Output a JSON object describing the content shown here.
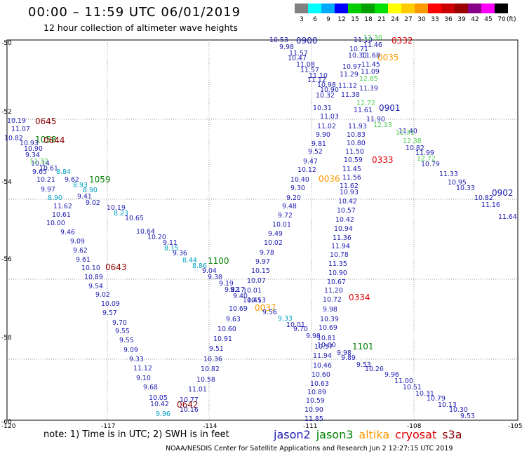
{
  "title": "00:00 – 11:59 UTC 06/01/2019",
  "subtitle": "12 hour collection of altimeter wave heights",
  "legend": {
    "ticks": [
      "3",
      "6",
      "9",
      "12",
      "15",
      "18",
      "21",
      "24",
      "27",
      "30",
      "33",
      "36",
      "39",
      "42",
      "45",
      "70"
    ],
    "unit": "(ft)",
    "colors": [
      "#808080",
      "#00ffff",
      "#00aaff",
      "#0000ff",
      "#00cc00",
      "#00a000",
      "#00e000",
      "#ffff00",
      "#ffcc00",
      "#ff9900",
      "#ff0000",
      "#cc0000",
      "#990000",
      "#880088",
      "#ff00ff",
      "#000000"
    ]
  },
  "axes": {
    "lat_labels": [
      "-50",
      "-52",
      "-54",
      "-56",
      "-58",
      "-60"
    ],
    "lon_labels": [
      "-120",
      "-117",
      "-114",
      "-111",
      "-108",
      "-105"
    ]
  },
  "colors": {
    "jason2": "#1a1ab0",
    "jason3": "#008000",
    "altika": "#ff9900",
    "cryosat": "#e00000",
    "s3a": "#8b0000",
    "cyan": "#00a0c0",
    "lightgreen": "#50d050"
  },
  "time_labels": [
    {
      "t": "0900",
      "c": "jason2"
    },
    {
      "t": "0332",
      "c": "cryosat"
    },
    {
      "t": "0035",
      "c": "altika"
    },
    {
      "t": "0901",
      "c": "jason2"
    },
    {
      "t": "0645",
      "c": "s3a"
    },
    {
      "t": "1058",
      "c": "jason3"
    },
    {
      "t": "0644",
      "c": "s3a"
    },
    {
      "t": "0333",
      "c": "cryosat"
    },
    {
      "t": "1059",
      "c": "jason3"
    },
    {
      "t": "0036",
      "c": "altika"
    },
    {
      "t": "0902",
      "c": "jason2"
    },
    {
      "t": "1100",
      "c": "jason3"
    },
    {
      "t": "0643",
      "c": "s3a"
    },
    {
      "t": "0334",
      "c": "cryosat"
    },
    {
      "t": "0037",
      "c": "altika"
    },
    {
      "t": "1101",
      "c": "jason3"
    },
    {
      "t": "0642",
      "c": "s3a"
    }
  ],
  "values": [
    {
      "v": "10.53",
      "c": "jason2"
    },
    {
      "v": "9.98",
      "c": "jason2"
    },
    {
      "v": "11.57",
      "c": "jason2"
    },
    {
      "v": "10.47",
      "c": "jason2"
    },
    {
      "v": "11.08",
      "c": "jason2"
    },
    {
      "v": "11.57",
      "c": "jason2"
    },
    {
      "v": "11.10",
      "c": "jason2"
    },
    {
      "v": "11.12",
      "c": "jason2"
    },
    {
      "v": "10.98",
      "c": "jason2"
    },
    {
      "v": "10.90",
      "c": "jason2"
    },
    {
      "v": "10.32",
      "c": "jason2"
    },
    {
      "v": "10.31",
      "c": "jason2"
    },
    {
      "v": "11.03",
      "c": "jason2"
    },
    {
      "v": "11.02",
      "c": "jason2"
    },
    {
      "v": "9.90",
      "c": "jason2"
    },
    {
      "v": "9.81",
      "c": "jason2"
    },
    {
      "v": "9.52",
      "c": "jason2"
    },
    {
      "v": "9.47",
      "c": "jason2"
    },
    {
      "v": "10.12",
      "c": "jason2"
    },
    {
      "v": "10.40",
      "c": "jason2"
    },
    {
      "v": "9.30",
      "c": "jason2"
    },
    {
      "v": "9.20",
      "c": "jason2"
    },
    {
      "v": "9.48",
      "c": "jason2"
    },
    {
      "v": "9.72",
      "c": "jason2"
    },
    {
      "v": "10.01",
      "c": "jason2"
    },
    {
      "v": "9.49",
      "c": "jason2"
    },
    {
      "v": "10.02",
      "c": "jason2"
    },
    {
      "v": "9.78",
      "c": "jason2"
    },
    {
      "v": "9.97",
      "c": "jason2"
    },
    {
      "v": "10.15",
      "c": "jason2"
    },
    {
      "v": "10.07",
      "c": "jason2"
    },
    {
      "v": "10.01",
      "c": "jason2"
    },
    {
      "v": "10.45",
      "c": "jason2"
    },
    {
      "v": "10.69",
      "c": "jason2"
    },
    {
      "v": "9.63",
      "c": "jason2"
    },
    {
      "v": "10.60",
      "c": "jason2"
    },
    {
      "v": "10.91",
      "c": "jason2"
    },
    {
      "v": "9.51",
      "c": "jason2"
    },
    {
      "v": "10.36",
      "c": "jason2"
    },
    {
      "v": "10.82",
      "c": "jason2"
    },
    {
      "v": "10.58",
      "c": "jason2"
    },
    {
      "v": "11.01",
      "c": "jason2"
    },
    {
      "v": "10.77",
      "c": "jason2"
    },
    {
      "v": "10.16",
      "c": "jason2"
    },
    {
      "v": "11.10",
      "c": "jason2"
    },
    {
      "v": "10.71",
      "c": "jason2"
    },
    {
      "v": "10.30",
      "c": "jason2"
    },
    {
      "v": "10.97",
      "c": "jason2"
    },
    {
      "v": "11.29",
      "c": "jason2"
    },
    {
      "v": "11.12",
      "c": "jason2"
    },
    {
      "v": "11.38",
      "c": "jason2"
    },
    {
      "v": "11.61",
      "c": "jason2"
    },
    {
      "v": "11.93",
      "c": "jason2"
    },
    {
      "v": "10.83",
      "c": "jason2"
    },
    {
      "v": "10.80",
      "c": "jason2"
    },
    {
      "v": "11.50",
      "c": "jason2"
    },
    {
      "v": "10.59",
      "c": "jason2"
    },
    {
      "v": "11.45",
      "c": "jason2"
    },
    {
      "v": "11.56",
      "c": "jason2"
    },
    {
      "v": "11.62",
      "c": "jason2"
    },
    {
      "v": "10.93",
      "c": "jason2"
    },
    {
      "v": "10.42",
      "c": "jason2"
    },
    {
      "v": "10.57",
      "c": "jason2"
    },
    {
      "v": "10.42",
      "c": "jason2"
    },
    {
      "v": "10.94",
      "c": "jason2"
    },
    {
      "v": "11.36",
      "c": "jason2"
    },
    {
      "v": "11.94",
      "c": "jason2"
    },
    {
      "v": "10.78",
      "c": "jason2"
    },
    {
      "v": "11.35",
      "c": "jason2"
    },
    {
      "v": "10.90",
      "c": "jason2"
    },
    {
      "v": "10.67",
      "c": "jason2"
    },
    {
      "v": "11.20",
      "c": "jason2"
    },
    {
      "v": "10.72",
      "c": "jason2"
    },
    {
      "v": "9.98",
      "c": "jason2"
    },
    {
      "v": "10.39",
      "c": "jason2"
    },
    {
      "v": "10.69",
      "c": "jason2"
    },
    {
      "v": "10.81",
      "c": "jason2"
    },
    {
      "v": "10.57",
      "c": "jason2"
    },
    {
      "v": "11.94",
      "c": "jason2"
    },
    {
      "v": "10.46",
      "c": "jason2"
    },
    {
      "v": "10.60",
      "c": "jason2"
    },
    {
      "v": "10.63",
      "c": "jason2"
    },
    {
      "v": "10.89",
      "c": "jason2"
    },
    {
      "v": "10.59",
      "c": "jason2"
    },
    {
      "v": "10.90",
      "c": "jason2"
    },
    {
      "v": "11.85",
      "c": "jason2"
    },
    {
      "v": "11.46",
      "c": "jason2"
    },
    {
      "v": "11.68",
      "c": "jason2"
    },
    {
      "v": "11.45",
      "c": "jason2"
    },
    {
      "v": "11.09",
      "c": "jason2"
    },
    {
      "v": "11.39",
      "c": "jason2"
    },
    {
      "v": "11.90",
      "c": "jason2"
    },
    {
      "v": "11.40",
      "c": "jason2"
    },
    {
      "v": "10.82",
      "c": "jason2"
    },
    {
      "v": "11.99",
      "c": "jason2"
    },
    {
      "v": "10.79",
      "c": "jason2"
    },
    {
      "v": "11.33",
      "c": "jason2"
    },
    {
      "v": "10.95",
      "c": "jason2"
    },
    {
      "v": "10.33",
      "c": "jason2"
    },
    {
      "v": "10.82",
      "c": "jason2"
    },
    {
      "v": "11.16",
      "c": "jason2"
    },
    {
      "v": "11.64",
      "c": "jason2"
    },
    {
      "v": "10.19",
      "c": "jason2"
    },
    {
      "v": "11.07",
      "c": "jason2"
    },
    {
      "v": "10.82",
      "c": "jason2"
    },
    {
      "v": "10.93",
      "c": "jason2"
    },
    {
      "v": "10.90",
      "c": "jason2"
    },
    {
      "v": "9.34",
      "c": "jason2"
    },
    {
      "v": "10.14",
      "c": "jason2"
    },
    {
      "v": "10.61",
      "c": "jason2"
    },
    {
      "v": "9.65",
      "c": "jason2"
    },
    {
      "v": "10.21",
      "c": "jason2"
    },
    {
      "v": "9.97",
      "c": "jason2"
    },
    {
      "v": "9.62",
      "c": "jason2"
    },
    {
      "v": "9.41",
      "c": "jason2"
    },
    {
      "v": "9.02",
      "c": "jason2"
    },
    {
      "v": "10.19",
      "c": "jason2"
    },
    {
      "v": "10.65",
      "c": "jason2"
    },
    {
      "v": "10.64",
      "c": "jason2"
    },
    {
      "v": "10.20",
      "c": "jason2"
    },
    {
      "v": "9.11",
      "c": "jason2"
    },
    {
      "v": "9.36",
      "c": "jason2"
    },
    {
      "v": "9.04",
      "c": "jason2"
    },
    {
      "v": "9.38",
      "c": "jason2"
    },
    {
      "v": "9.19",
      "c": "jason2"
    },
    {
      "v": "9.82",
      "c": "jason2"
    },
    {
      "v": "9.17",
      "c": "jason2"
    },
    {
      "v": "9.40",
      "c": "jason2"
    },
    {
      "v": "10.13",
      "c": "jason2"
    },
    {
      "v": "9.56",
      "c": "jason2"
    },
    {
      "v": "10.01",
      "c": "jason2"
    },
    {
      "v": "9.70",
      "c": "jason2"
    },
    {
      "v": "9.98",
      "c": "jason2"
    },
    {
      "v": "10.00",
      "c": "jason2"
    },
    {
      "v": "9.98",
      "c": "jason2"
    },
    {
      "v": "9.89",
      "c": "jason2"
    },
    {
      "v": "9.53",
      "c": "jason2"
    },
    {
      "v": "10.26",
      "c": "jason2"
    },
    {
      "v": "9.96",
      "c": "jason2"
    },
    {
      "v": "11.00",
      "c": "jason2"
    },
    {
      "v": "10.51",
      "c": "jason2"
    },
    {
      "v": "10.31",
      "c": "jason2"
    },
    {
      "v": "10.79",
      "c": "jason2"
    },
    {
      "v": "10.13",
      "c": "jason2"
    },
    {
      "v": "10.30",
      "c": "jason2"
    },
    {
      "v": "9.53",
      "c": "jason2"
    },
    {
      "v": "11.62",
      "c": "jason2"
    },
    {
      "v": "10.61",
      "c": "jason2"
    },
    {
      "v": "10.00",
      "c": "jason2"
    },
    {
      "v": "9.46",
      "c": "jason2"
    },
    {
      "v": "9.09",
      "c": "jason2"
    },
    {
      "v": "9.62",
      "c": "jason2"
    },
    {
      "v": "9.61",
      "c": "jason2"
    },
    {
      "v": "10.10",
      "c": "jason2"
    },
    {
      "v": "10.89",
      "c": "jason2"
    },
    {
      "v": "9.54",
      "c": "jason2"
    },
    {
      "v": "9.02",
      "c": "jason2"
    },
    {
      "v": "10.09",
      "c": "jason2"
    },
    {
      "v": "9.57",
      "c": "jason2"
    },
    {
      "v": "9.70",
      "c": "jason2"
    },
    {
      "v": "9.55",
      "c": "jason2"
    },
    {
      "v": "9.55",
      "c": "jason2"
    },
    {
      "v": "9.09",
      "c": "jason2"
    },
    {
      "v": "9.33",
      "c": "jason2"
    },
    {
      "v": "11.12",
      "c": "jason2"
    },
    {
      "v": "9.10",
      "c": "jason2"
    },
    {
      "v": "9.68",
      "c": "jason2"
    },
    {
      "v": "10.05",
      "c": "jason2"
    },
    {
      "v": "10.42",
      "c": "jason2"
    },
    {
      "v": "9.96",
      "c": "cyan"
    },
    {
      "v": "8.84",
      "c": "cyan"
    },
    {
      "v": "8.90",
      "c": "cyan"
    },
    {
      "v": "8.90",
      "c": "cyan"
    },
    {
      "v": "8.93",
      "c": "cyan"
    },
    {
      "v": "8.23",
      "c": "cyan"
    },
    {
      "v": "8.15",
      "c": "cyan"
    },
    {
      "v": "8.44",
      "c": "cyan"
    },
    {
      "v": "8.86",
      "c": "cyan"
    },
    {
      "v": "9.33",
      "c": "cyan"
    },
    {
      "v": "12.32",
      "c": "lightgreen"
    },
    {
      "v": "12.85",
      "c": "lightgreen"
    },
    {
      "v": "12.30",
      "c": "lightgreen"
    },
    {
      "v": "12.72",
      "c": "lightgreen"
    },
    {
      "v": "12.13",
      "c": "lightgreen"
    },
    {
      "v": "12.31",
      "c": "lightgreen"
    },
    {
      "v": "12.38",
      "c": "lightgreen"
    },
    {
      "v": "12.72",
      "c": "lightgreen"
    }
  ],
  "note": "note: 1) Time is in UTC; 2) SWH is in feet",
  "satellites": [
    {
      "name": "jason2",
      "c": "jason2"
    },
    {
      "name": "jason3",
      "c": "jason3"
    },
    {
      "name": "altika",
      "c": "altika"
    },
    {
      "name": "cryosat",
      "c": "cryosat"
    },
    {
      "name": "s3a",
      "c": "s3a"
    }
  ],
  "credit": "NOAA/NESDIS Center for Satellite Applications and Research    Jun  2 12:27:15 UTC 2019"
}
